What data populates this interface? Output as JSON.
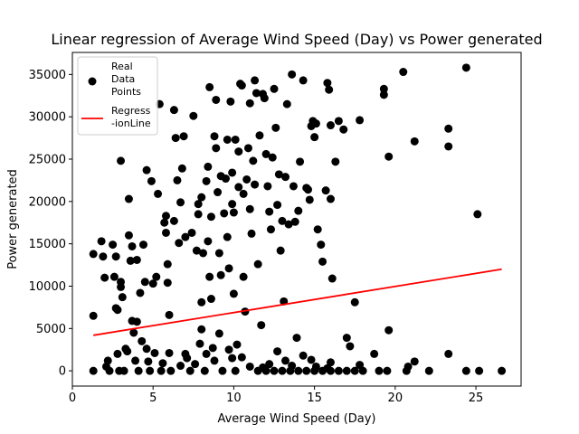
{
  "chart_data": {
    "type": "scatter",
    "title": "Linear regression of Average Wind Speed (Day) vs Power generated",
    "xlabel": "Average Wind Speed (Day)",
    "ylabel": "Power generated",
    "xlim": [
      0,
      27.8
    ],
    "ylim": [
      -1800,
      37600
    ],
    "xticks": [
      0,
      5,
      10,
      15,
      20,
      25
    ],
    "yticks": [
      0,
      5000,
      10000,
      15000,
      20000,
      25000,
      30000,
      35000
    ],
    "grid": false,
    "legend_placement": "top-left",
    "legend": [
      {
        "label_lines": [
          "Real",
          "Data",
          "Points"
        ],
        "marker": "circle",
        "color": "#000000"
      },
      {
        "label_lines": [
          "Regress",
          "-ionLine"
        ],
        "marker": "line",
        "color": "#ff0000"
      }
    ],
    "series": [
      {
        "name": "Real Data Points",
        "kind": "scatter",
        "color": "#000000",
        "points": [
          [
            1.3,
            13800
          ],
          [
            1.3,
            6500
          ],
          [
            1.3,
            0
          ],
          [
            1.8,
            15300
          ],
          [
            1.9,
            13500
          ],
          [
            2.0,
            11000
          ],
          [
            2.1,
            500
          ],
          [
            2.2,
            1200
          ],
          [
            2.3,
            0
          ],
          [
            2.5,
            14900
          ],
          [
            2.6,
            11100
          ],
          [
            2.7,
            13500
          ],
          [
            2.7,
            7400
          ],
          [
            2.8,
            2000
          ],
          [
            2.8,
            7200
          ],
          [
            2.9,
            0
          ],
          [
            3.0,
            24800
          ],
          [
            3.0,
            10500
          ],
          [
            3.0,
            9900
          ],
          [
            3.1,
            8700
          ],
          [
            3.2,
            0
          ],
          [
            3.3,
            2600
          ],
          [
            3.4,
            2300
          ],
          [
            3.5,
            20300
          ],
          [
            3.5,
            16000
          ],
          [
            3.6,
            13000
          ],
          [
            3.7,
            14700
          ],
          [
            3.7,
            5900
          ],
          [
            3.8,
            4500
          ],
          [
            3.9,
            1200
          ],
          [
            4.0,
            13100
          ],
          [
            4.0,
            5800
          ],
          [
            4.1,
            0
          ],
          [
            4.2,
            9200
          ],
          [
            4.3,
            3500
          ],
          [
            4.4,
            14900
          ],
          [
            4.5,
            10500
          ],
          [
            4.6,
            23700
          ],
          [
            4.6,
            2600
          ],
          [
            4.7,
            1100
          ],
          [
            4.8,
            0
          ],
          [
            4.9,
            22400
          ],
          [
            5.0,
            10300
          ],
          [
            5.1,
            2100
          ],
          [
            5.2,
            11100
          ],
          [
            5.3,
            20900
          ],
          [
            5.4,
            31500
          ],
          [
            5.5,
            0
          ],
          [
            5.7,
            17500
          ],
          [
            5.8,
            16300
          ],
          [
            5.8,
            18300
          ],
          [
            5.9,
            12600
          ],
          [
            5.9,
            10400
          ],
          [
            6.0,
            6600
          ],
          [
            6.0,
            2100
          ],
          [
            6.1,
            0
          ],
          [
            6.3,
            30800
          ],
          [
            6.3,
            17700
          ],
          [
            6.4,
            27500
          ],
          [
            6.5,
            22500
          ],
          [
            6.6,
            15100
          ],
          [
            6.7,
            19900
          ],
          [
            6.8,
            23900
          ],
          [
            6.9,
            27700
          ],
          [
            7.0,
            15800
          ],
          [
            7.0,
            2000
          ],
          [
            7.1,
            1500
          ],
          [
            7.3,
            0
          ],
          [
            7.4,
            16300
          ],
          [
            7.5,
            30100
          ],
          [
            7.7,
            14200
          ],
          [
            7.8,
            19700
          ],
          [
            7.8,
            18500
          ],
          [
            8.0,
            20500
          ],
          [
            8.0,
            8100
          ],
          [
            8.0,
            4900
          ],
          [
            8.1,
            13900
          ],
          [
            8.2,
            0
          ],
          [
            8.3,
            22400
          ],
          [
            8.4,
            24100
          ],
          [
            8.4,
            15300
          ],
          [
            8.5,
            33500
          ],
          [
            8.5,
            11100
          ],
          [
            8.6,
            18200
          ],
          [
            8.6,
            8500
          ],
          [
            8.7,
            2700
          ],
          [
            8.8,
            27700
          ],
          [
            8.9,
            32000
          ],
          [
            8.9,
            26300
          ],
          [
            9.0,
            21100
          ],
          [
            9.1,
            13900
          ],
          [
            9.2,
            23000
          ],
          [
            9.2,
            11300
          ],
          [
            9.3,
            0
          ],
          [
            9.4,
            18600
          ],
          [
            9.5,
            22700
          ],
          [
            9.6,
            27300
          ],
          [
            9.6,
            15800
          ],
          [
            9.7,
            12100
          ],
          [
            9.8,
            31800
          ],
          [
            9.9,
            23400
          ],
          [
            9.9,
            19700
          ],
          [
            9.9,
            1500
          ],
          [
            10.0,
            18700
          ],
          [
            10.0,
            9100
          ],
          [
            10.1,
            0
          ],
          [
            10.1,
            27300
          ],
          [
            10.3,
            25900
          ],
          [
            10.3,
            21700
          ],
          [
            10.4,
            33900
          ],
          [
            10.5,
            33700
          ],
          [
            10.6,
            20900
          ],
          [
            10.6,
            11100
          ],
          [
            10.7,
            7000
          ],
          [
            10.8,
            22600
          ],
          [
            10.9,
            26300
          ],
          [
            11.0,
            31600
          ],
          [
            11.0,
            19100
          ],
          [
            11.1,
            16200
          ],
          [
            11.2,
            24800
          ],
          [
            11.3,
            34300
          ],
          [
            11.3,
            22000
          ],
          [
            11.4,
            32800
          ],
          [
            11.5,
            12600
          ],
          [
            11.6,
            27800
          ],
          [
            11.7,
            5400
          ],
          [
            11.8,
            32700
          ],
          [
            11.9,
            32200
          ],
          [
            12.0,
            25600
          ],
          [
            12.1,
            21800
          ],
          [
            12.2,
            18800
          ],
          [
            12.3,
            16700
          ],
          [
            12.4,
            25200
          ],
          [
            12.5,
            33300
          ],
          [
            12.6,
            28700
          ],
          [
            12.7,
            19600
          ],
          [
            12.8,
            23200
          ],
          [
            12.9,
            14200
          ],
          [
            13.0,
            17700
          ],
          [
            13.1,
            8200
          ],
          [
            13.2,
            22900
          ],
          [
            13.3,
            31500
          ],
          [
            13.4,
            17300
          ],
          [
            13.6,
            35000
          ],
          [
            13.7,
            21800
          ],
          [
            13.8,
            17600
          ],
          [
            13.9,
            3900
          ],
          [
            14.0,
            18900
          ],
          [
            14.1,
            24700
          ],
          [
            14.3,
            34300
          ],
          [
            14.5,
            21600
          ],
          [
            14.6,
            21400
          ],
          [
            14.7,
            20200
          ],
          [
            14.8,
            28900
          ],
          [
            14.9,
            29500
          ],
          [
            15.0,
            27600
          ],
          [
            15.1,
            29200
          ],
          [
            15.2,
            16700
          ],
          [
            15.4,
            14900
          ],
          [
            15.5,
            12900
          ],
          [
            15.7,
            21300
          ],
          [
            15.8,
            34000
          ],
          [
            15.9,
            33200
          ],
          [
            16.0,
            20300
          ],
          [
            16.0,
            29000
          ],
          [
            16.1,
            10900
          ],
          [
            16.3,
            24700
          ],
          [
            16.5,
            29500
          ],
          [
            16.8,
            28500
          ],
          [
            17.0,
            3900
          ],
          [
            17.2,
            2900
          ],
          [
            17.5,
            8100
          ],
          [
            17.8,
            29600
          ],
          [
            18.7,
            2000
          ],
          [
            19.3,
            32600
          ],
          [
            19.3,
            33300
          ],
          [
            19.6,
            25300
          ],
          [
            19.6,
            4800
          ],
          [
            20.5,
            35300
          ],
          [
            20.8,
            500
          ],
          [
            21.2,
            27100
          ],
          [
            21.2,
            1100
          ],
          [
            23.3,
            28600
          ],
          [
            23.3,
            26500
          ],
          [
            23.3,
            2000
          ],
          [
            24.4,
            35800
          ],
          [
            25.1,
            18500
          ],
          [
            11.5,
            0
          ],
          [
            12.0,
            0
          ],
          [
            12.5,
            0
          ],
          [
            13.0,
            0
          ],
          [
            13.5,
            0
          ],
          [
            14.0,
            0
          ],
          [
            14.5,
            0
          ],
          [
            15.0,
            0
          ],
          [
            15.5,
            0
          ],
          [
            16.0,
            0
          ],
          [
            16.5,
            0
          ],
          [
            17.0,
            0
          ],
          [
            17.5,
            0
          ],
          [
            18.0,
            0
          ],
          [
            19.0,
            0
          ],
          [
            19.5,
            0
          ],
          [
            20.7,
            0
          ],
          [
            22.1,
            0
          ],
          [
            24.4,
            0
          ],
          [
            25.2,
            0
          ],
          [
            26.6,
            0
          ],
          [
            11.0,
            500
          ],
          [
            12.2,
            800
          ],
          [
            13.2,
            1200
          ],
          [
            14.3,
            1800
          ],
          [
            15.1,
            500
          ],
          [
            16.0,
            1000
          ],
          [
            10.5,
            1600
          ],
          [
            9.7,
            2500
          ],
          [
            8.8,
            1200
          ],
          [
            7.9,
            3200
          ],
          [
            6.7,
            600
          ],
          [
            5.6,
            900
          ],
          [
            11.8,
            400
          ],
          [
            12.7,
            2300
          ],
          [
            13.6,
            600
          ],
          [
            14.8,
            1300
          ],
          [
            15.8,
            300
          ],
          [
            17.8,
            700
          ],
          [
            10.2,
            3100
          ],
          [
            9.1,
            4400
          ],
          [
            8.3,
            2000
          ],
          [
            7.6,
            800
          ]
        ]
      },
      {
        "name": "Regress-ionLine",
        "kind": "line",
        "color": "#ff0000",
        "points": [
          [
            1.3,
            4200
          ],
          [
            26.6,
            12000
          ]
        ]
      }
    ]
  }
}
